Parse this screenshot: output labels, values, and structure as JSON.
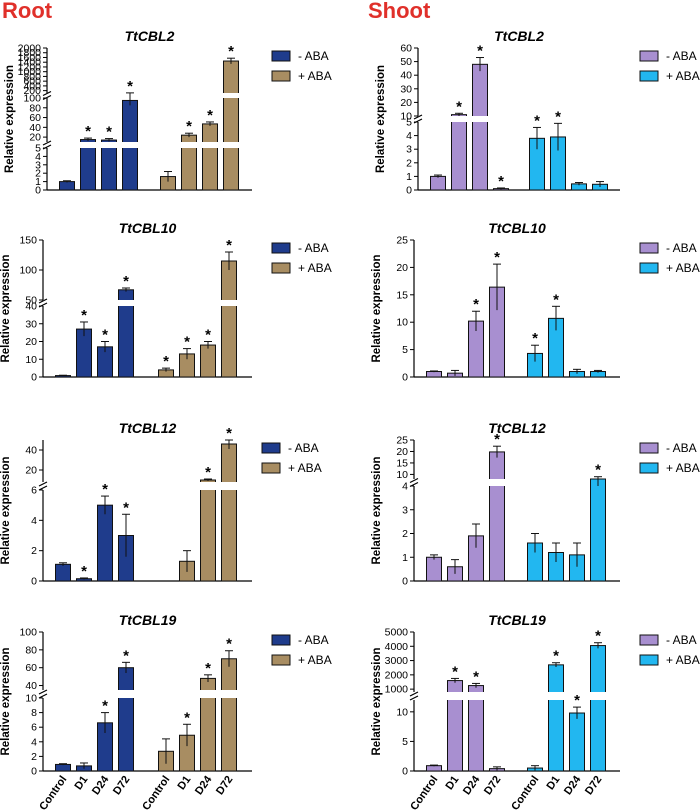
{
  "sections": {
    "root": "Root",
    "shoot": "Shoot"
  },
  "ylabel": "Relative expression",
  "legend": {
    "neg": "- ABA",
    "pos": "+ ABA"
  },
  "categories": [
    "Control",
    "D1",
    "D24",
    "D72"
  ],
  "colors": {
    "root_neg": "#1f3c8c",
    "root_pos": "#a88d62",
    "shoot_neg": "#a88fd0",
    "shoot_pos": "#22b7f0",
    "sig": "#000000"
  },
  "chart_data": [
    {
      "type": "bar",
      "panel": "root",
      "title": "TtCBL2",
      "segments": [
        {
          "range": [
            0,
            5
          ],
          "ticks": [
            0,
            1,
            2,
            3,
            4,
            5
          ]
        },
        {
          "range": [
            10,
            100
          ],
          "ticks": [
            20,
            40,
            60,
            80,
            100
          ]
        },
        {
          "range": [
            100,
            2000
          ],
          "ticks": [
            200,
            400,
            600,
            800,
            1000,
            1200,
            1400,
            1600,
            1800,
            2000
          ]
        }
      ],
      "series": [
        {
          "name": "- ABA",
          "values": [
            1.0,
            15,
            14,
            95
          ],
          "errors": [
            0.1,
            3,
            3,
            10
          ],
          "significant": [
            false,
            true,
            true,
            true
          ]
        },
        {
          "name": "+ ABA",
          "values": [
            1.6,
            24,
            47,
            1450
          ],
          "errors": [
            0.6,
            4,
            4,
            120
          ],
          "significant": [
            false,
            true,
            true,
            true
          ]
        }
      ]
    },
    {
      "type": "bar",
      "panel": "shoot",
      "title": "TtCBL2",
      "segments": [
        {
          "range": [
            0,
            5
          ],
          "ticks": [
            0,
            1,
            2,
            3,
            4,
            5
          ]
        },
        {
          "range": [
            10,
            60
          ],
          "ticks": [
            10,
            20,
            30,
            40,
            50,
            60
          ]
        }
      ],
      "series": [
        {
          "name": "- ABA",
          "values": [
            1.0,
            11,
            48,
            0.1
          ],
          "errors": [
            0.1,
            1,
            5,
            0.05
          ],
          "significant": [
            false,
            true,
            true,
            true
          ]
        },
        {
          "name": "+ ABA",
          "values": [
            3.8,
            3.9,
            0.45,
            0.42
          ],
          "errors": [
            0.8,
            1.0,
            0.1,
            0.2
          ],
          "significant": [
            true,
            true,
            false,
            false
          ]
        }
      ]
    },
    {
      "type": "bar",
      "panel": "root",
      "title": "TtCBL10",
      "segments": [
        {
          "range": [
            0,
            40
          ],
          "ticks": [
            0,
            10,
            20,
            30,
            40
          ]
        },
        {
          "range": [
            50,
            150
          ],
          "ticks": [
            50,
            100,
            150
          ]
        }
      ],
      "series": [
        {
          "name": "- ABA",
          "values": [
            0.8,
            27,
            17,
            67
          ],
          "errors": [
            0.2,
            4,
            3,
            3
          ],
          "significant": [
            false,
            true,
            true,
            true
          ]
        },
        {
          "name": "+ ABA",
          "values": [
            4,
            13,
            18,
            115
          ],
          "errors": [
            1,
            3,
            2,
            15
          ],
          "significant": [
            true,
            true,
            true,
            true
          ]
        }
      ]
    },
    {
      "type": "bar",
      "panel": "shoot",
      "title": "TtCBL10",
      "segments": [
        {
          "range": [
            0,
            25
          ],
          "ticks": [
            0,
            5,
            10,
            15,
            20,
            25
          ]
        }
      ],
      "series": [
        {
          "name": "- ABA",
          "values": [
            1.0,
            0.7,
            10.2,
            16.4
          ],
          "errors": [
            0.1,
            0.5,
            1.8,
            4.2
          ],
          "significant": [
            false,
            false,
            true,
            true
          ]
        },
        {
          "name": "+ ABA",
          "values": [
            4.3,
            10.7,
            1.0,
            1.0
          ],
          "errors": [
            1.5,
            2.2,
            0.4,
            0.2
          ],
          "significant": [
            true,
            true,
            false,
            false
          ]
        }
      ]
    },
    {
      "type": "bar",
      "panel": "root",
      "title": "TtCBL12",
      "segments": [
        {
          "range": [
            0,
            6
          ],
          "ticks": [
            0,
            2,
            4,
            6
          ]
        },
        {
          "range": [
            8,
            50
          ],
          "ticks": [
            20,
            40
          ]
        }
      ],
      "series": [
        {
          "name": "- ABA",
          "values": [
            1.1,
            0.15,
            5.0,
            3.0
          ],
          "errors": [
            0.1,
            0.05,
            0.6,
            1.4
          ],
          "significant": [
            false,
            true,
            true,
            true
          ]
        },
        {
          "name": "+ ABA",
          "values": [
            0.0,
            1.3,
            10,
            46
          ],
          "errors": [
            0.0,
            0.7,
            1,
            5
          ],
          "significant": [
            false,
            false,
            true,
            true
          ]
        }
      ]
    },
    {
      "type": "bar",
      "panel": "shoot",
      "title": "TtCBL12",
      "segments": [
        {
          "range": [
            0,
            4
          ],
          "ticks": [
            0,
            1,
            2,
            3,
            4
          ]
        },
        {
          "range": [
            8,
            25
          ],
          "ticks": [
            10,
            15,
            20,
            25
          ]
        }
      ],
      "series": [
        {
          "name": "- ABA",
          "values": [
            1.0,
            0.6,
            1.9,
            19.8
          ],
          "errors": [
            0.1,
            0.3,
            0.5,
            2.5
          ],
          "significant": [
            false,
            false,
            false,
            true
          ]
        },
        {
          "name": "+ ABA",
          "values": [
            1.6,
            1.2,
            1.1,
            8.0
          ],
          "errors": [
            0.4,
            0.4,
            0.5,
            1.0
          ],
          "significant": [
            false,
            false,
            false,
            true
          ]
        }
      ]
    },
    {
      "type": "bar",
      "panel": "root",
      "title": "TtCBL19",
      "segments": [
        {
          "range": [
            0,
            10
          ],
          "ticks": [
            0,
            2,
            4,
            6,
            8,
            10
          ]
        },
        {
          "range": [
            35,
            100
          ],
          "ticks": [
            40,
            60,
            80,
            100
          ]
        }
      ],
      "series": [
        {
          "name": "- ABA",
          "values": [
            0.9,
            0.7,
            6.6,
            60
          ],
          "errors": [
            0.1,
            0.4,
            1.4,
            6
          ],
          "significant": [
            false,
            false,
            true,
            true
          ]
        },
        {
          "name": "+ ABA",
          "values": [
            2.7,
            4.9,
            48,
            70
          ],
          "errors": [
            1.7,
            1.5,
            4,
            9
          ],
          "significant": [
            false,
            true,
            true,
            true
          ]
        }
      ]
    },
    {
      "type": "bar",
      "panel": "shoot",
      "title": "TtCBL19",
      "segments": [
        {
          "range": [
            0,
            12
          ],
          "ticks": [
            0,
            5,
            10
          ]
        },
        {
          "range": [
            800,
            5000
          ],
          "ticks": [
            1000,
            2000,
            3000,
            4000,
            5000
          ]
        }
      ],
      "series": [
        {
          "name": "- ABA",
          "values": [
            0.9,
            1600,
            1250,
            0.4
          ],
          "errors": [
            0.1,
            150,
            150,
            0.3
          ],
          "significant": [
            false,
            true,
            true,
            false
          ]
        },
        {
          "name": "+ ABA",
          "values": [
            0.5,
            2700,
            9.8,
            4050
          ],
          "errors": [
            0.4,
            150,
            1.0,
            200
          ],
          "significant": [
            false,
            true,
            true,
            true
          ]
        }
      ]
    }
  ]
}
